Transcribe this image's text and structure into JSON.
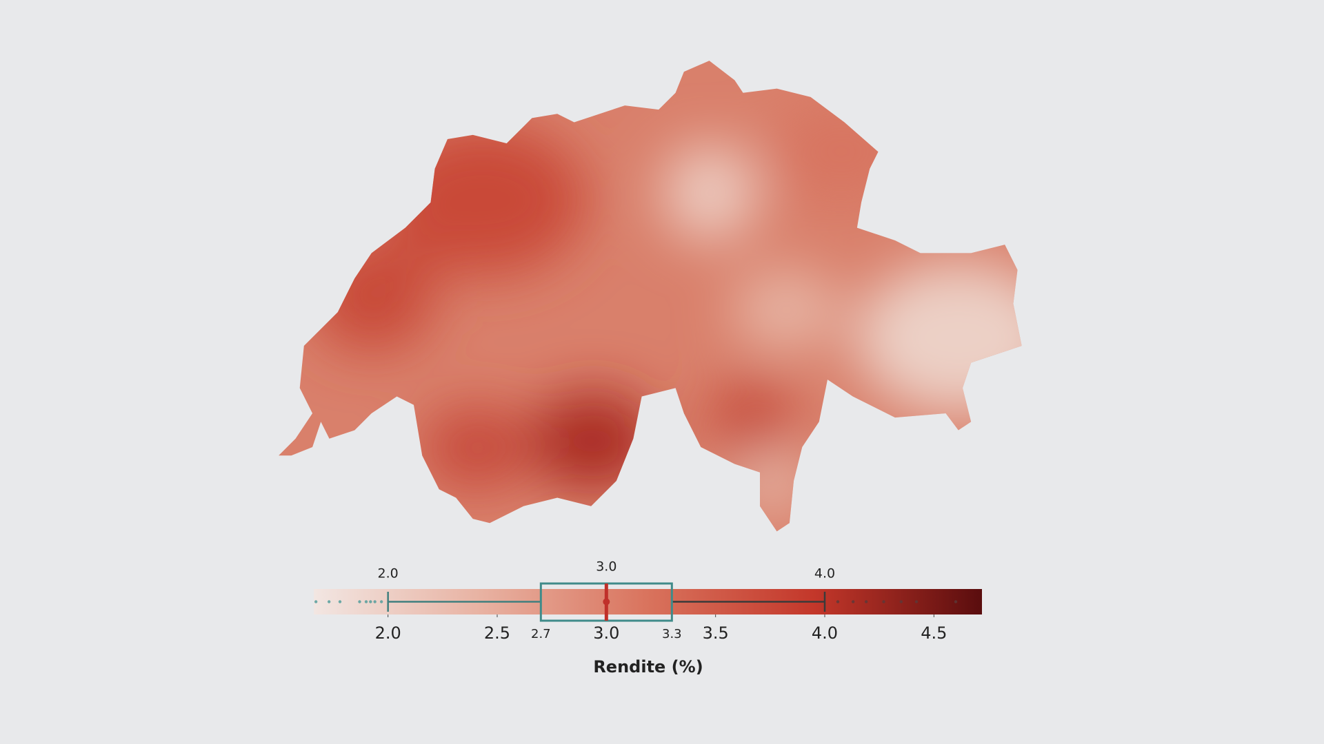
{
  "legend": {
    "label": "Rendite (%)",
    "range": [
      1.66,
      4.72
    ],
    "colors": [
      "#f2e6e2",
      "#e8b2a2",
      "#d9735d",
      "#c3372a",
      "#5a0d0e"
    ],
    "ticks": [
      {
        "value": 2,
        "label": "2.0"
      },
      {
        "value": 2.5,
        "label": "2.5"
      },
      {
        "value": 3,
        "label": "3.0"
      },
      {
        "value": 3.5,
        "label": "3.5"
      },
      {
        "value": 4,
        "label": "4.0"
      },
      {
        "value": 4.5,
        "label": "4.5"
      }
    ],
    "box": {
      "whisker_low": {
        "value": 2,
        "label": "2.0"
      },
      "q1": {
        "value": 2.7,
        "label": "2.7"
      },
      "median": {
        "value": 3,
        "label": "3.0"
      },
      "q3": {
        "value": 3.3,
        "label": "3.3"
      },
      "whisker_high": {
        "value": 4,
        "label": "4.0"
      }
    },
    "outliers": [
      1.67,
      1.73,
      1.78,
      1.87,
      1.9,
      1.92,
      1.94,
      1.97,
      4.06,
      4.13,
      4.19,
      4.27,
      4.35,
      4.42,
      4.6
    ]
  }
}
